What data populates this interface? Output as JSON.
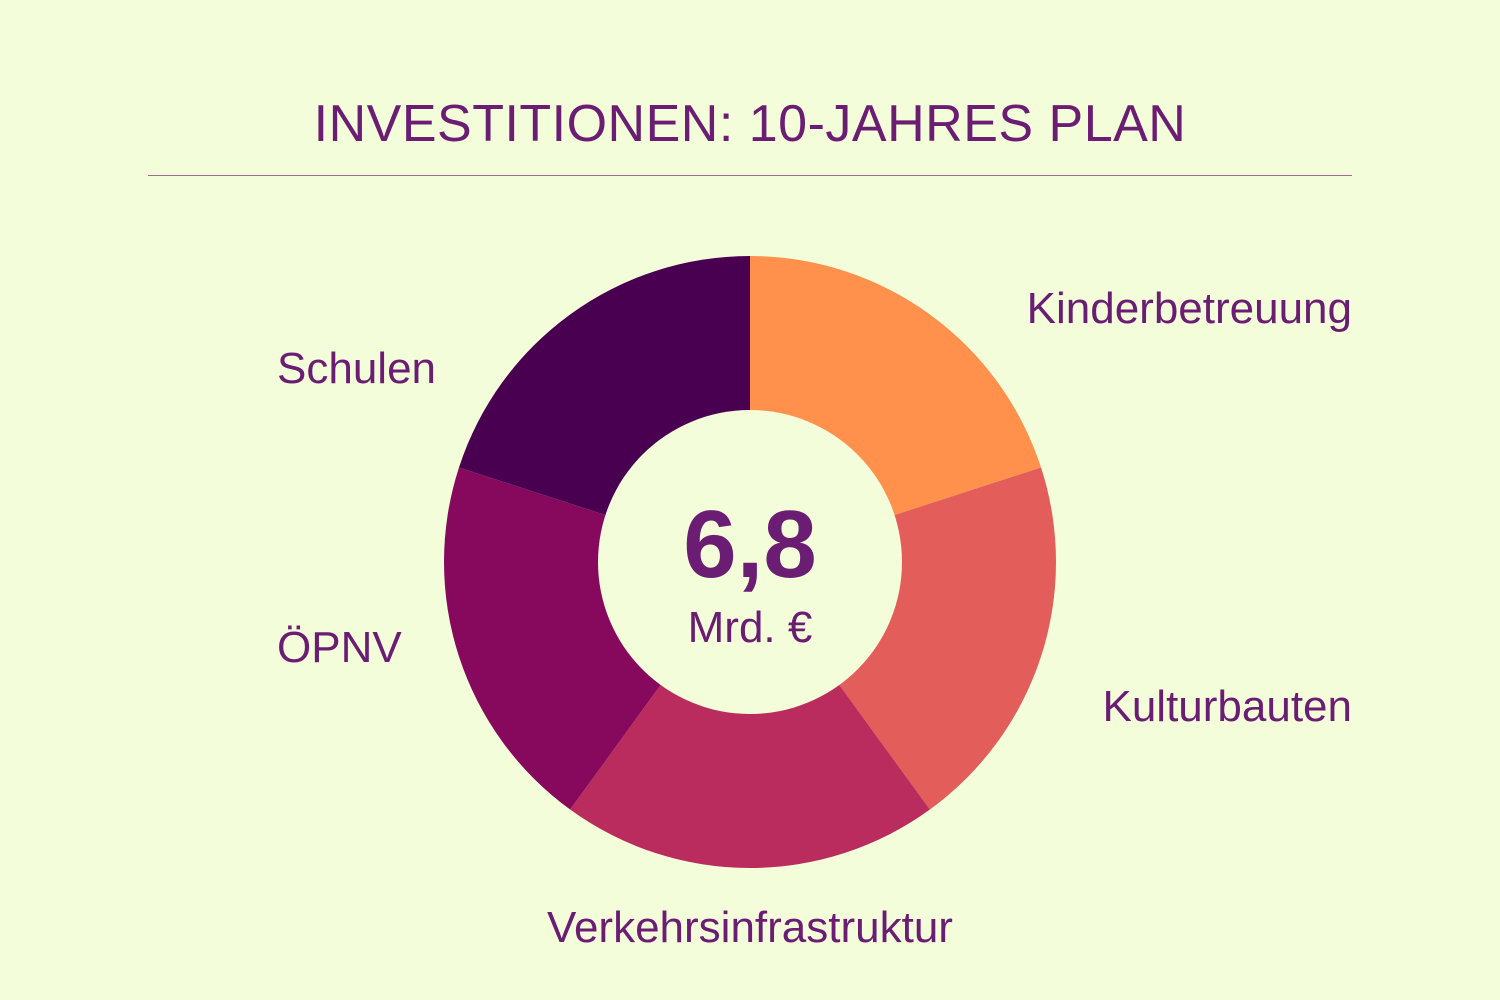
{
  "colors": {
    "background": "#F3FDD9",
    "text": "#6B1D73",
    "rule": "#9A6F8E",
    "hole": "#F3FDD9"
  },
  "chart_data": {
    "type": "pie",
    "title": "INVESTITIONEN: 10-JAHRES PLAN",
    "center_value": "6,8",
    "center_unit": "Mrd. €",
    "slices": [
      {
        "label": "Kinderbetreuung",
        "value": 20,
        "color": "#FF914D"
      },
      {
        "label": "Kulturbauten",
        "value": 20,
        "color": "#E35D5B"
      },
      {
        "label": "Verkehrsinfrastruktur",
        "value": 20,
        "color": "#BA2C5E"
      },
      {
        "label": "ÖPNV",
        "value": 20,
        "color": "#87095D"
      },
      {
        "label": "Schulen",
        "value": 20,
        "color": "#4A0050"
      }
    ]
  }
}
